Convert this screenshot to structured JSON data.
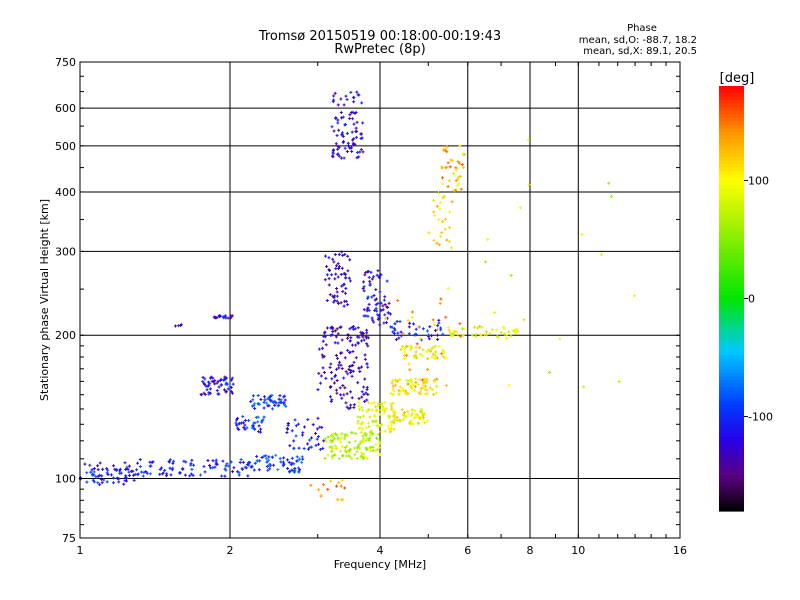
{
  "chart_data": {
    "type": "scatter",
    "title": "Tromsø 20150519 00:18:00-00:19:43",
    "subtitle": "RwPretec (8p)",
    "xlabel": "Frequency [MHz]",
    "ylabel": "Stationary phase Virtual Height [km]",
    "x_scale": "log",
    "y_scale": "log",
    "xlim": [
      1,
      16
    ],
    "ylim": [
      75,
      750
    ],
    "xticks": [
      1,
      2,
      4,
      6,
      8,
      10,
      16
    ],
    "xtick_labels": [
      "1",
      "2",
      "4",
      "6",
      "8",
      "10",
      "16"
    ],
    "yticks": [
      75,
      100,
      200,
      300,
      400,
      500,
      600,
      750
    ],
    "ytick_labels": [
      "75",
      "100",
      "200",
      "300",
      "400",
      "500",
      "600",
      "750"
    ],
    "grid": true,
    "stats": {
      "heading": "Phase",
      "line1": "mean, sd,O: -88.7, 18.2",
      "line2": "mean, sd,X: 89.1, 20.5"
    },
    "colorbar": {
      "label": "[deg]",
      "range": [
        -180,
        180
      ],
      "ticks": [
        100,
        0,
        -100
      ],
      "tick_labels": [
        "100",
        "0",
        "-100"
      ]
    },
    "clusters": [
      {
        "f": [
          1.0,
          1.3
        ],
        "h": [
          97,
          108
        ],
        "phase": -110,
        "n": 70
      },
      {
        "f": [
          1.3,
          2.2
        ],
        "h": [
          101,
          110
        ],
        "phase": -105,
        "n": 90
      },
      {
        "f": [
          2.2,
          2.8
        ],
        "h": [
          103,
          112
        ],
        "phase": -95,
        "n": 60
      },
      {
        "f": [
          1.75,
          2.05
        ],
        "h": [
          150,
          165
        ],
        "phase": -115,
        "n": 55
      },
      {
        "f": [
          2.05,
          2.35
        ],
        "h": [
          125,
          135
        ],
        "phase": -100,
        "n": 35
      },
      {
        "f": [
          2.2,
          2.6
        ],
        "h": [
          140,
          150
        ],
        "phase": -90,
        "n": 50
      },
      {
        "f": [
          1.85,
          2.05
        ],
        "h": [
          216,
          220
        ],
        "phase": -120,
        "n": 20
      },
      {
        "f": [
          1.55,
          1.6
        ],
        "h": [
          209,
          211
        ],
        "phase": -125,
        "n": 4
      },
      {
        "f": [
          2.6,
          3.1
        ],
        "h": [
          115,
          135
        ],
        "phase": -110,
        "n": 40
      },
      {
        "f": [
          3.1,
          4.0
        ],
        "h": [
          110,
          125
        ],
        "phase": 70,
        "n": 120
      },
      {
        "f": [
          3.6,
          4.3
        ],
        "h": [
          125,
          145
        ],
        "phase": 90,
        "n": 80
      },
      {
        "f": [
          4.2,
          5.0
        ],
        "h": [
          130,
          140
        ],
        "phase": 100,
        "n": 60
      },
      {
        "f": [
          4.2,
          5.2
        ],
        "h": [
          150,
          162
        ],
        "phase": 105,
        "n": 70
      },
      {
        "f": [
          4.4,
          5.4
        ],
        "h": [
          178,
          190
        ],
        "phase": 100,
        "n": 45
      },
      {
        "f": [
          3.0,
          3.8
        ],
        "h": [
          140,
          210
        ],
        "phase": -130,
        "n": 150
      },
      {
        "f": [
          3.1,
          3.5
        ],
        "h": [
          230,
          300
        ],
        "phase": -130,
        "n": 60
      },
      {
        "f": [
          3.7,
          4.2
        ],
        "h": [
          210,
          275
        ],
        "phase": -120,
        "n": 70
      },
      {
        "f": [
          4.2,
          5.4
        ],
        "h": [
          195,
          215
        ],
        "phase": -110,
        "n": 40
      },
      {
        "f": [
          5.3,
          7.6
        ],
        "h": [
          198,
          208
        ],
        "phase": 90,
        "n": 45
      },
      {
        "f": [
          5.3,
          5.9
        ],
        "h": [
          400,
          500
        ],
        "phase": 130,
        "n": 40
      },
      {
        "f": [
          5.0,
          5.6
        ],
        "h": [
          300,
          400
        ],
        "phase": 110,
        "n": 25
      },
      {
        "f": [
          3.2,
          3.7
        ],
        "h": [
          470,
          650
        ],
        "phase": -120,
        "n": 90
      },
      {
        "f": [
          4.1,
          5.9
        ],
        "h": [
          155,
          260
        ],
        "phase": 130,
        "n": 30
      },
      {
        "f": [
          2.9,
          3.4
        ],
        "h": [
          90,
          100
        ],
        "phase": 140,
        "n": 15
      },
      {
        "f": [
          6.0,
          13.0
        ],
        "h": [
          150,
          600
        ],
        "phase": 80,
        "n": 20
      }
    ]
  }
}
